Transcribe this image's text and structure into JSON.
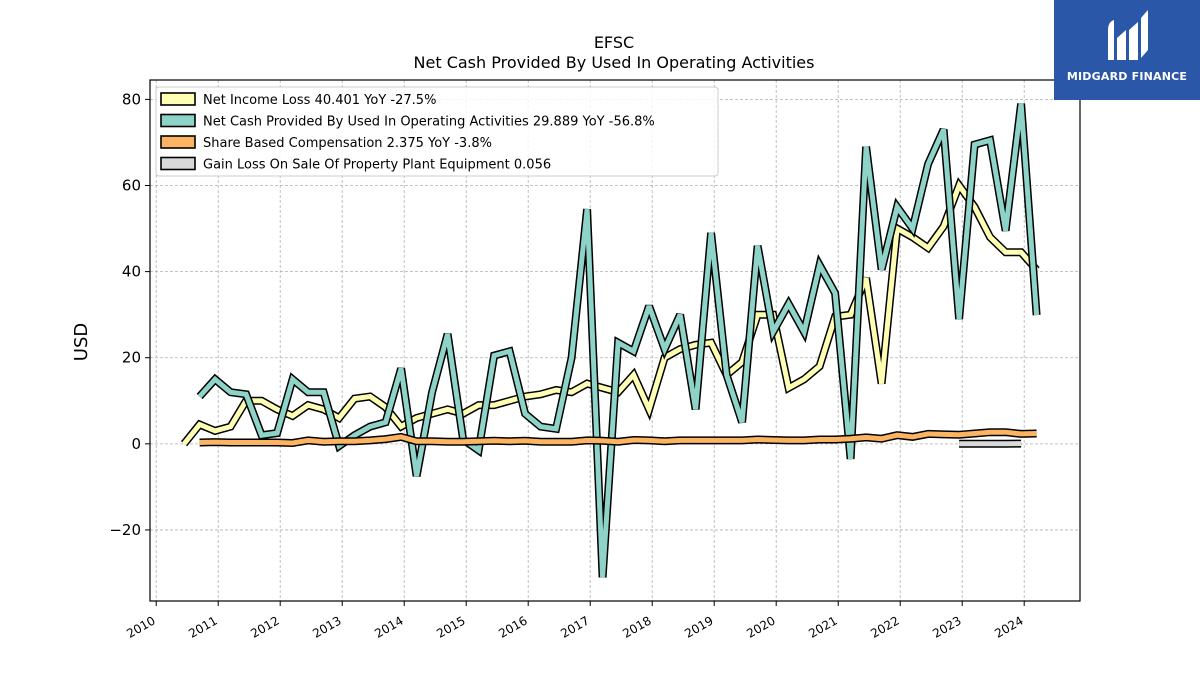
{
  "chart_data": {
    "type": "line",
    "title": "EFSC",
    "subtitle": "Net Cash Provided By Used In Operating Activities",
    "ylabel": "USD",
    "xlabel": "",
    "xlim": [
      2009.9,
      2024.9
    ],
    "ylim": [
      -36.5,
      84.5
    ],
    "yticks": [
      -20,
      0,
      20,
      40,
      60,
      80
    ],
    "yticklabels": [
      "−20",
      "0",
      "20",
      "40",
      "60",
      "80"
    ],
    "xticks": [
      "2010",
      "2011",
      "2012",
      "2013",
      "2014",
      "2015",
      "2016",
      "2017",
      "2018",
      "2019",
      "2020",
      "2021",
      "2022",
      "2023",
      "2024"
    ],
    "grid": true,
    "legend_position": "top-left",
    "series": [
      {
        "name": "Net Income Loss  40.401 YoY -27.5%",
        "color": "#ffffb3",
        "x": [
          2010.45,
          2010.7,
          2010.95,
          2011.2,
          2011.45,
          2011.7,
          2011.95,
          2012.2,
          2012.45,
          2012.7,
          2012.95,
          2013.2,
          2013.45,
          2013.7,
          2013.95,
          2014.2,
          2014.45,
          2014.7,
          2014.95,
          2015.2,
          2015.45,
          2015.7,
          2015.95,
          2016.2,
          2016.45,
          2016.7,
          2016.95,
          2017.2,
          2017.45,
          2017.7,
          2017.95,
          2018.2,
          2018.45,
          2018.7,
          2018.95,
          2019.2,
          2019.45,
          2019.7,
          2019.95,
          2020.2,
          2020.45,
          2020.7,
          2020.95,
          2021.2,
          2021.45,
          2021.7,
          2021.95,
          2022.2,
          2022.45,
          2022.7,
          2022.95,
          2023.2,
          2023.45,
          2023.7,
          2023.95,
          2024.2
        ],
        "values": [
          0,
          4.5,
          3,
          4,
          10,
          10,
          8,
          6.5,
          9,
          8,
          6,
          10.5,
          11,
          8.5,
          4,
          6,
          7,
          8,
          7,
          9,
          9,
          10,
          11,
          11.5,
          12.5,
          12,
          14,
          13,
          12,
          16,
          8,
          20,
          22,
          23,
          23.5,
          16,
          19,
          30,
          30,
          13,
          15,
          18,
          29.5,
          30,
          38.5,
          14,
          50,
          48,
          45.5,
          50.5,
          60,
          55,
          48,
          44.5,
          44.5,
          40.4
        ]
      },
      {
        "name": "Net Cash Provided By Used In Operating Activities  29.889 YoY -56.8%",
        "color": "#8dd3c7",
        "x": [
          2010.7,
          2010.95,
          2011.2,
          2011.45,
          2011.7,
          2011.95,
          2012.2,
          2012.45,
          2012.7,
          2012.95,
          2013.2,
          2013.45,
          2013.7,
          2013.95,
          2014.2,
          2014.45,
          2014.7,
          2014.95,
          2015.2,
          2015.45,
          2015.7,
          2015.95,
          2016.2,
          2016.45,
          2016.7,
          2016.95,
          2017.2,
          2017.45,
          2017.7,
          2017.95,
          2018.2,
          2018.45,
          2018.7,
          2018.95,
          2019.2,
          2019.45,
          2019.7,
          2019.95,
          2020.2,
          2020.45,
          2020.7,
          2020.95,
          2021.2,
          2021.45,
          2021.7,
          2021.95,
          2022.2,
          2022.45,
          2022.7,
          2022.95,
          2023.2,
          2023.45,
          2023.7,
          2023.95,
          2024.2
        ],
        "values": [
          11,
          15,
          12,
          11.5,
          2,
          2.5,
          15,
          12,
          12,
          -0.5,
          2,
          4,
          5,
          17.5,
          -7.5,
          12,
          25.5,
          1,
          -1.5,
          20.5,
          21.5,
          7,
          4,
          3.5,
          20,
          54.5,
          -31,
          23.5,
          21.5,
          32,
          22,
          30,
          8,
          49,
          16,
          5,
          46,
          26,
          32.5,
          26,
          41.5,
          35,
          -3.5,
          69,
          40.5,
          55,
          50,
          65,
          73,
          29,
          69.5,
          70.5,
          49.5,
          79,
          29.9
        ]
      },
      {
        "name": "Share Based Compensation  2.375 YoY -3.8%",
        "color": "#fdb462",
        "x": [
          2010.7,
          2010.95,
          2011.2,
          2011.45,
          2011.7,
          2011.95,
          2012.2,
          2012.45,
          2012.7,
          2012.95,
          2013.2,
          2013.45,
          2013.7,
          2013.95,
          2014.2,
          2014.45,
          2014.7,
          2014.95,
          2015.2,
          2015.45,
          2015.7,
          2015.95,
          2016.2,
          2016.45,
          2016.7,
          2016.95,
          2017.2,
          2017.45,
          2017.7,
          2017.95,
          2018.2,
          2018.45,
          2018.7,
          2018.95,
          2019.2,
          2019.45,
          2019.7,
          2019.95,
          2020.2,
          2020.45,
          2020.7,
          2020.95,
          2021.2,
          2021.45,
          2021.7,
          2021.95,
          2022.2,
          2022.45,
          2022.7,
          2022.95,
          2023.2,
          2023.45,
          2023.7,
          2023.95,
          2024.2
        ],
        "values": [
          0.3,
          0.4,
          0.3,
          0.3,
          0.3,
          0.3,
          0.2,
          0.8,
          0.5,
          0.6,
          0.6,
          0.8,
          1.1,
          1.6,
          0.6,
          0.6,
          0.5,
          0.5,
          0.6,
          0.7,
          0.6,
          0.7,
          0.5,
          0.5,
          0.5,
          0.8,
          0.7,
          0.5,
          0.9,
          0.8,
          0.6,
          0.8,
          0.8,
          0.8,
          0.8,
          0.8,
          1.0,
          0.9,
          0.8,
          0.8,
          1.0,
          1.0,
          1.2,
          1.5,
          1.2,
          2.0,
          1.6,
          2.3,
          2.2,
          2.1,
          2.4,
          2.7,
          2.7,
          2.3,
          2.4
        ]
      },
      {
        "name": "Gain Loss On Sale Of Property Plant Equipment  0.056",
        "color": "#d9d9d9",
        "x": [
          2022.95,
          2023.2,
          2023.45,
          2023.7,
          2023.95
        ],
        "values": [
          0,
          0,
          0,
          0,
          0.056
        ]
      }
    ]
  },
  "logo": {
    "text": "MIDGARD FINANCE",
    "background": "#2b57a8"
  }
}
